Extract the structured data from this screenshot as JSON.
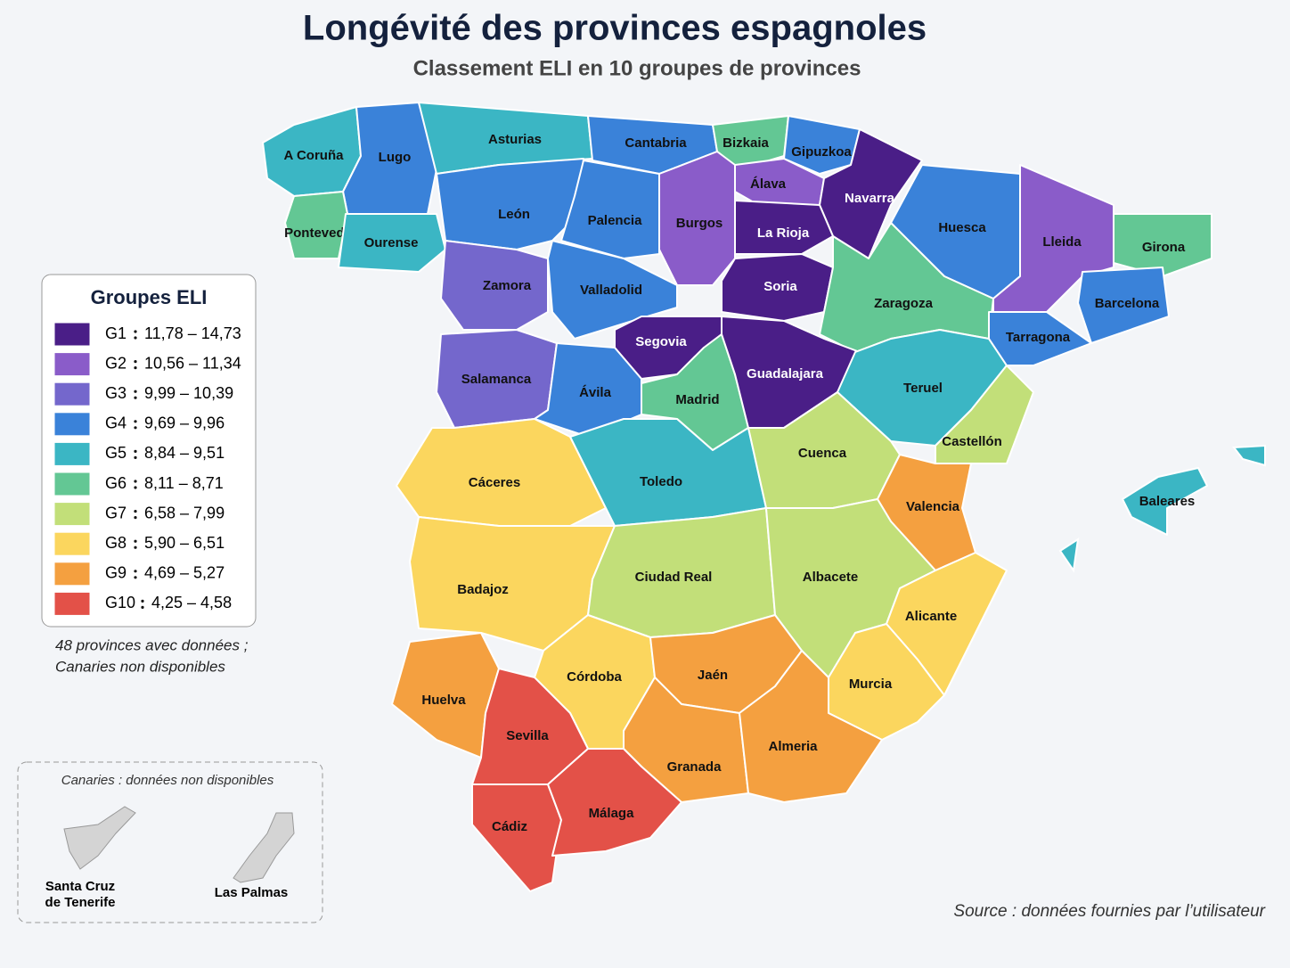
{
  "title": "Longévité des provinces espagnoles",
  "subtitle": "Classement ELI en 10 groupes de provinces",
  "legend": {
    "title": "Groupes ELI",
    "items": [
      {
        "group": "G1",
        "range": "11,78 – 14,73",
        "color": "#4a1e87"
      },
      {
        "group": "G2",
        "range": "10,56 – 11,34",
        "color": "#8a5cc9"
      },
      {
        "group": "G3",
        "range": "9,99 – 10,39",
        "color": "#7467cc"
      },
      {
        "group": "G4",
        "range": "9,69 – 9,96",
        "color": "#3a82d9"
      },
      {
        "group": "G5",
        "range": "8,84 – 9,51",
        "color": "#3bb6c4"
      },
      {
        "group": "G6",
        "range": "8,11 – 8,71",
        "color": "#63c794"
      },
      {
        "group": "G7",
        "range": "6,58 – 7,99",
        "color": "#c2df79"
      },
      {
        "group": "G8",
        "range": "5,90 – 6,51",
        "color": "#fbd65e"
      },
      {
        "group": "G9",
        "range": "4,69 – 5,27",
        "color": "#f4a040"
      },
      {
        "group": "G10",
        "range": "4,25 – 4,58",
        "color": "#e35148"
      }
    ]
  },
  "note": [
    "48 provinces avec données ;",
    "Canaries non disponibles"
  ],
  "provinces": [
    {
      "name": "A Coruña",
      "group": "G5"
    },
    {
      "name": "Lugo",
      "group": "G4"
    },
    {
      "name": "Pontevedra",
      "group": "G6"
    },
    {
      "name": "Ourense",
      "group": "G5"
    },
    {
      "name": "Asturias",
      "group": "G5"
    },
    {
      "name": "León",
      "group": "G4"
    },
    {
      "name": "Cantabria",
      "group": "G4"
    },
    {
      "name": "Palencia",
      "group": "G4"
    },
    {
      "name": "Bizkaia",
      "group": "G6"
    },
    {
      "name": "Gipuzkoa",
      "group": "G4"
    },
    {
      "name": "Álava",
      "group": "G2"
    },
    {
      "name": "Burgos",
      "group": "G2"
    },
    {
      "name": "Navarra",
      "group": "G1"
    },
    {
      "name": "La Rioja",
      "group": "G1"
    },
    {
      "name": "Huesca",
      "group": "G4"
    },
    {
      "name": "Lleida",
      "group": "G2"
    },
    {
      "name": "Girona",
      "group": "G6"
    },
    {
      "name": "Barcelona",
      "group": "G4"
    },
    {
      "name": "Zamora",
      "group": "G3"
    },
    {
      "name": "Valladolid",
      "group": "G4"
    },
    {
      "name": "Soria",
      "group": "G1"
    },
    {
      "name": "Zaragoza",
      "group": "G6"
    },
    {
      "name": "Salamanca",
      "group": "G3"
    },
    {
      "name": "Segovia",
      "group": "G1"
    },
    {
      "name": "Ávila",
      "group": "G4"
    },
    {
      "name": "Madrid",
      "group": "G6"
    },
    {
      "name": "Guadalajara",
      "group": "G1"
    },
    {
      "name": "Teruel",
      "group": "G5"
    },
    {
      "name": "Tarragona",
      "group": "G4"
    },
    {
      "name": "Castellón",
      "group": "G7"
    },
    {
      "name": "Cáceres",
      "group": "G8"
    },
    {
      "name": "Toledo",
      "group": "G5"
    },
    {
      "name": "Cuenca",
      "group": "G7"
    },
    {
      "name": "Valencia",
      "group": "G9"
    },
    {
      "name": "Badajoz",
      "group": "G8"
    },
    {
      "name": "Ciudad Real",
      "group": "G7"
    },
    {
      "name": "Albacete",
      "group": "G7"
    },
    {
      "name": "Alicante",
      "group": "G8"
    },
    {
      "name": "Murcia",
      "group": "G8"
    },
    {
      "name": "Huelva",
      "group": "G9"
    },
    {
      "name": "Córdoba",
      "group": "G8"
    },
    {
      "name": "Jaén",
      "group": "G9"
    },
    {
      "name": "Sevilla",
      "group": "G10"
    },
    {
      "name": "Granada",
      "group": "G9"
    },
    {
      "name": "Almeria",
      "group": "G9"
    },
    {
      "name": "Cádiz",
      "group": "G10"
    },
    {
      "name": "Málaga",
      "group": "G10"
    },
    {
      "name": "Baleares",
      "group": "G5"
    }
  ],
  "canarias": {
    "title": "Canaries : données non disponibles",
    "islands": [
      [
        "Santa Cruz",
        "de Tenerife"
      ],
      [
        "Las Palmas"
      ]
    ]
  },
  "source": "Source : données fournies par l’utilisateur"
}
